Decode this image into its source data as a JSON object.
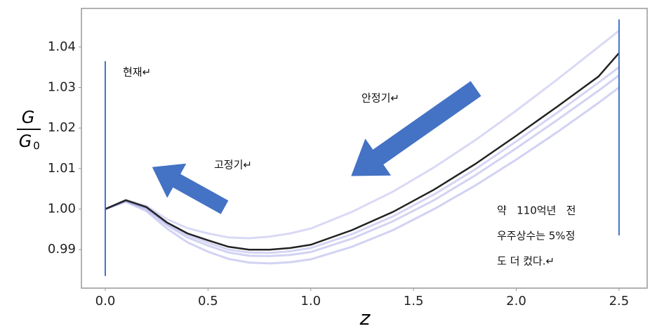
{
  "chart_data": {
    "type": "line",
    "ylabel": {
      "numerator": "G",
      "denominator": "G",
      "denominator_sub": "0"
    },
    "xlabel": "z",
    "x": [
      0,
      0.1,
      0.2,
      0.3,
      0.4,
      0.5,
      0.6,
      0.7,
      0.8,
      0.9,
      1.0,
      1.2,
      1.4,
      1.6,
      1.8,
      2.0,
      2.2,
      2.4,
      2.5
    ],
    "series": [
      {
        "color": "#8080e0",
        "values": [
          1.0,
          1.0022,
          1.0008,
          0.9975,
          0.9953,
          0.994,
          0.993,
          0.9928,
          0.9932,
          0.994,
          0.9952,
          0.9993,
          1.0043,
          1.0103,
          1.017,
          1.0243,
          1.032,
          1.04,
          1.044
        ]
      },
      {
        "color": "#6a6ad8",
        "values": [
          1.0,
          1.002,
          1.0,
          0.996,
          0.993,
          0.991,
          0.9893,
          0.9885,
          0.9884,
          0.9887,
          0.9894,
          0.9927,
          0.997,
          1.0022,
          1.0083,
          1.015,
          1.022,
          1.0292,
          1.033
        ]
      },
      {
        "color": "#6a6ad8",
        "values": [
          1.0,
          1.0018,
          0.9995,
          0.9952,
          0.9918,
          0.9895,
          0.9877,
          0.9868,
          0.9866,
          0.9869,
          0.9876,
          0.9907,
          0.9948,
          1.0,
          1.0058,
          1.0122,
          1.019,
          1.0262,
          1.03
        ]
      },
      {
        "color": "#7070dc",
        "values": [
          1.0,
          1.0021,
          1.0003,
          0.9964,
          0.9936,
          0.9917,
          0.99,
          0.9893,
          0.9892,
          0.9896,
          0.9904,
          0.9938,
          0.9982,
          1.0036,
          1.0098,
          1.0167,
          1.0238,
          1.0312,
          1.035
        ]
      },
      {
        "color": "#222222",
        "values": [
          1.0,
          1.0022,
          1.0005,
          0.9967,
          0.994,
          0.9923,
          0.9907,
          0.99,
          0.99,
          0.9904,
          0.9912,
          0.9948,
          0.9993,
          1.0048,
          1.0111,
          1.0181,
          1.0253,
          1.0327,
          1.0385
        ]
      }
    ],
    "vlines": [
      {
        "x": 0,
        "y": [
          0.9835,
          1.0365
        ],
        "color": "#4472c4"
      },
      {
        "x": 2.5,
        "y": [
          0.9935,
          1.0468
        ],
        "color": "#4472c4"
      }
    ],
    "xlim": [
      -0.116,
      2.637
    ],
    "ylim": [
      0.9805,
      1.0495
    ],
    "xticks": [
      {
        "value": 0,
        "label": "0.0"
      },
      0.5,
      {
        "value": 1,
        "label": "1.0"
      },
      1.5,
      {
        "value": 2,
        "label": "2.0"
      },
      2.5
    ],
    "yticks": [
      0.99,
      {
        "value": 1,
        "label": "1.00"
      },
      1.01,
      1.02,
      1.03,
      1.04
    ],
    "annotations": {
      "now": "현재↵",
      "fixed": "고정기↵",
      "stable": "안정기↵",
      "note": [
        "약   110억년   전",
        "우주상수는 5%정",
        "도 더 컸다.↵"
      ]
    }
  }
}
